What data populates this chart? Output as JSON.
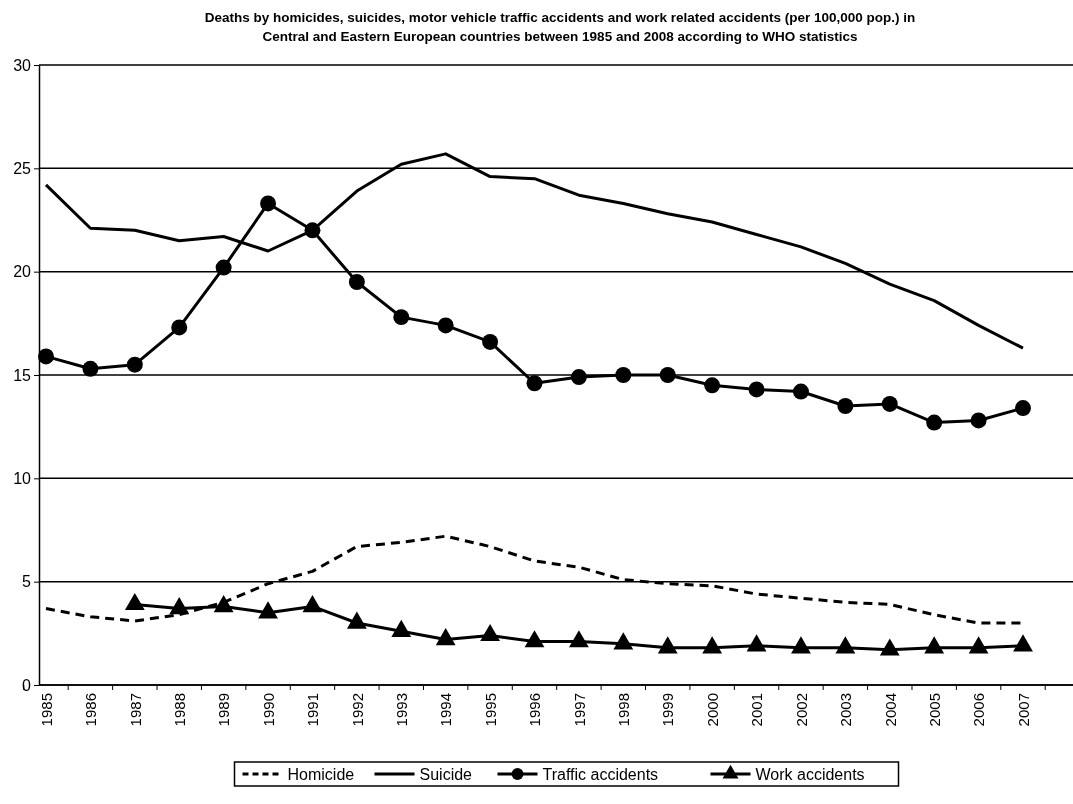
{
  "chart_data": {
    "type": "line",
    "title": "Deaths by homicides, suicides, motor vehicle traffic accidents and work related accidents (per 100,000 pop.) in Central and Eastern European countries between 1985 and 2008 according to WHO statistics",
    "categories": [
      "1985",
      "1986",
      "1987",
      "1988",
      "1989",
      "1990",
      "1991",
      "1992",
      "1993",
      "1994",
      "1995",
      "1996",
      "1997",
      "1998",
      "1999",
      "2000",
      "2001",
      "2002",
      "2003",
      "2004",
      "2005",
      "2006",
      "2007"
    ],
    "series": [
      {
        "name": "Homicide",
        "color": "#000000",
        "line_style": "dashed",
        "marker": "none",
        "values": [
          3.7,
          3.3,
          3.1,
          3.4,
          4.0,
          4.9,
          5.5,
          6.7,
          6.9,
          7.2,
          6.7,
          6.0,
          5.7,
          5.1,
          4.9,
          4.8,
          4.4,
          4.2,
          4.0,
          3.9,
          3.4,
          3.0,
          3.0
        ]
      },
      {
        "name": "Suicide",
        "color": "#000000",
        "line_style": "solid",
        "marker": "none",
        "values": [
          24.2,
          22.1,
          22.0,
          21.5,
          21.7,
          21.0,
          22.0,
          23.9,
          25.2,
          25.7,
          24.6,
          24.5,
          23.7,
          23.3,
          22.8,
          22.4,
          21.8,
          21.2,
          20.4,
          19.4,
          18.6,
          17.4,
          16.3
        ]
      },
      {
        "name": "Traffic accidents",
        "color": "#000000",
        "line_style": "solid",
        "marker": "circle",
        "values": [
          15.9,
          15.3,
          15.5,
          17.3,
          20.2,
          23.3,
          22.0,
          19.5,
          17.8,
          17.4,
          16.6,
          14.6,
          14.9,
          15.0,
          15.0,
          14.5,
          14.3,
          14.2,
          13.5,
          13.6,
          12.7,
          12.8,
          13.4
        ]
      },
      {
        "name": "Work accidents",
        "color": "#000000",
        "line_style": "solid",
        "marker": "triangle",
        "values": [
          null,
          null,
          3.9,
          3.7,
          3.8,
          3.5,
          3.8,
          3.0,
          2.6,
          2.2,
          2.4,
          2.1,
          2.1,
          2.0,
          1.8,
          1.8,
          1.9,
          1.8,
          1.8,
          1.7,
          1.8,
          1.8,
          1.9
        ]
      }
    ],
    "ylim": [
      0,
      30
    ],
    "yticks": [
      0,
      5,
      10,
      15,
      20,
      25,
      30
    ],
    "grid": "y",
    "legend": "bottom"
  }
}
